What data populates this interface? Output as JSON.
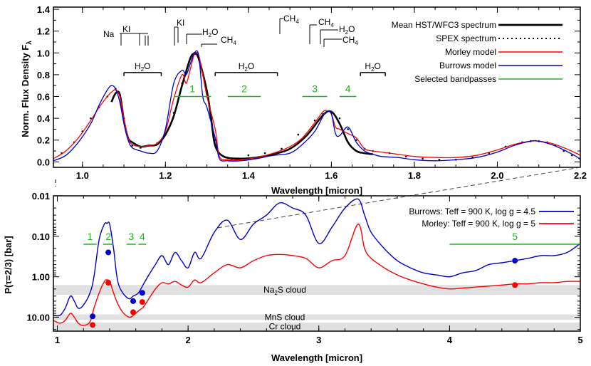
{
  "chart_data": [
    {
      "type": "line",
      "xlabel": "Wavelength [micron]",
      "ylabel": "Norm. Flux Density F",
      "ylabel_sub": "λ",
      "xlim": [
        0.93,
        2.2
      ],
      "ylim": [
        -0.05,
        1.42
      ],
      "x_ticks": [
        1.0,
        1.2,
        1.4,
        1.6,
        1.8,
        2.0,
        2.2
      ],
      "x_tick_labels": [
        "1.0",
        "1.2",
        "1.4",
        "1.6",
        "1.8",
        "2.0",
        "2.2"
      ],
      "y_ticks": [
        0.0,
        0.2,
        0.4,
        0.6,
        0.8,
        1.0,
        1.2,
        1.4
      ],
      "y_tick_labels": [
        "0.0",
        "0.2",
        "0.4",
        "0.6",
        "0.8",
        "1.0",
        "1.2",
        "1.4"
      ],
      "legend": {
        "position": "top-right",
        "entries": [
          {
            "label": "Mean HST/WFC3 spectrum",
            "color": "#000000",
            "style": "thick"
          },
          {
            "label": "SPEX spectrum",
            "color": "#000000",
            "style": "dotted"
          },
          {
            "label": "Morley model",
            "color": "#ff0000",
            "style": "solid"
          },
          {
            "label": "Burrows model",
            "color": "#0000cc",
            "style": "solid"
          },
          {
            "label": "Selected bandpasses",
            "color": "#22b022",
            "style": "solid"
          }
        ]
      },
      "series": [
        {
          "name": "Mean HST/WFC3 spectrum",
          "color": "#000000",
          "x": [
            1.07,
            1.08,
            1.09,
            1.1,
            1.11,
            1.12,
            1.14,
            1.16,
            1.18,
            1.2,
            1.22,
            1.24,
            1.26,
            1.27,
            1.28,
            1.3,
            1.31,
            1.32,
            1.34,
            1.38,
            1.42,
            1.46,
            1.5,
            1.54,
            1.58,
            1.6,
            1.62,
            1.64,
            1.66,
            1.68,
            1.7
          ],
          "y": [
            0.55,
            0.63,
            0.62,
            0.38,
            0.22,
            0.18,
            0.14,
            0.15,
            0.16,
            0.25,
            0.42,
            0.7,
            0.95,
            0.99,
            0.95,
            0.65,
            0.4,
            0.15,
            0.05,
            0.03,
            0.04,
            0.07,
            0.12,
            0.24,
            0.43,
            0.46,
            0.35,
            0.18,
            0.1,
            0.08,
            0.07
          ]
        },
        {
          "name": "SPEX spectrum",
          "color": "#000000",
          "x": [
            0.95,
            0.98,
            1.0,
            1.02,
            1.04,
            1.06,
            1.08,
            1.09,
            1.1,
            1.11,
            1.12,
            1.14,
            1.16,
            1.18,
            1.2,
            1.22,
            1.24,
            1.26,
            1.27,
            1.28,
            1.3,
            1.32,
            1.34,
            1.36,
            1.4,
            1.44,
            1.48,
            1.52,
            1.56,
            1.58,
            1.6,
            1.62,
            1.64,
            1.66,
            1.68,
            1.7,
            1.74,
            1.78,
            1.82,
            1.86,
            1.9,
            1.94,
            1.98,
            2.02,
            2.06,
            2.08,
            2.1,
            2.12,
            2.14,
            2.16,
            2.18,
            2.2
          ],
          "y": [
            0.08,
            0.18,
            0.28,
            0.4,
            0.5,
            0.6,
            0.67,
            0.62,
            0.4,
            0.22,
            0.15,
            0.13,
            0.15,
            0.17,
            0.25,
            0.45,
            0.72,
            0.95,
            1.0,
            0.96,
            0.6,
            0.2,
            0.05,
            0.03,
            0.06,
            0.08,
            0.12,
            0.25,
            0.38,
            0.44,
            0.45,
            0.4,
            0.3,
            0.2,
            0.12,
            0.1,
            0.08,
            0.05,
            0.03,
            0.02,
            0.02,
            0.04,
            0.08,
            0.14,
            0.18,
            0.19,
            0.19,
            0.18,
            0.15,
            0.1,
            0.06,
            0.04
          ]
        },
        {
          "name": "Morley model",
          "color": "#ff0000",
          "x": [
            0.93,
            0.96,
            0.99,
            1.02,
            1.04,
            1.06,
            1.07,
            1.08,
            1.09,
            1.1,
            1.11,
            1.12,
            1.14,
            1.16,
            1.18,
            1.2,
            1.22,
            1.24,
            1.25,
            1.26,
            1.27,
            1.28,
            1.29,
            1.3,
            1.32,
            1.33,
            1.35,
            1.38,
            1.42,
            1.46,
            1.5,
            1.53,
            1.56,
            1.58,
            1.59,
            1.6,
            1.61,
            1.62,
            1.64,
            1.66,
            1.68,
            1.7,
            1.72,
            1.76,
            1.8,
            1.85,
            1.9,
            1.95,
            2.0,
            2.04,
            2.08,
            2.1,
            2.13,
            2.16,
            2.19,
            2.2
          ],
          "y": [
            0.03,
            0.1,
            0.22,
            0.38,
            0.5,
            0.6,
            0.64,
            0.66,
            0.6,
            0.4,
            0.22,
            0.16,
            0.14,
            0.15,
            0.17,
            0.28,
            0.58,
            0.8,
            0.72,
            0.85,
            0.99,
            0.98,
            0.8,
            0.6,
            0.3,
            0.05,
            0.02,
            0.02,
            0.04,
            0.08,
            0.14,
            0.22,
            0.36,
            0.46,
            0.47,
            0.44,
            0.32,
            0.3,
            0.26,
            0.22,
            0.12,
            0.1,
            0.09,
            0.07,
            0.05,
            0.04,
            0.04,
            0.06,
            0.11,
            0.16,
            0.19,
            0.19,
            0.17,
            0.13,
            0.08,
            0.06
          ]
        },
        {
          "name": "Burrows model",
          "color": "#0000cc",
          "x": [
            0.93,
            0.96,
            0.99,
            1.02,
            1.04,
            1.06,
            1.07,
            1.08,
            1.09,
            1.1,
            1.11,
            1.12,
            1.14,
            1.16,
            1.18,
            1.2,
            1.22,
            1.24,
            1.25,
            1.26,
            1.27,
            1.28,
            1.29,
            1.3,
            1.32,
            1.33,
            1.35,
            1.38,
            1.42,
            1.46,
            1.5,
            1.53,
            1.56,
            1.58,
            1.59,
            1.6,
            1.61,
            1.62,
            1.64,
            1.66,
            1.68,
            1.7,
            1.72,
            1.76,
            1.8,
            1.85,
            1.9,
            1.95,
            2.0,
            2.04,
            2.08,
            2.1,
            2.13,
            2.16,
            2.19,
            2.2
          ],
          "y": [
            0.01,
            0.06,
            0.18,
            0.35,
            0.52,
            0.66,
            0.7,
            0.67,
            0.55,
            0.35,
            0.2,
            0.13,
            0.1,
            0.08,
            0.1,
            0.3,
            0.72,
            0.84,
            0.8,
            0.9,
            1.0,
            0.98,
            0.6,
            0.5,
            0.22,
            0.03,
            0.01,
            0.01,
            0.03,
            0.06,
            0.08,
            0.16,
            0.28,
            0.42,
            0.46,
            0.44,
            0.26,
            0.24,
            0.32,
            0.18,
            0.1,
            0.07,
            0.05,
            0.04,
            0.02,
            0.01,
            0.02,
            0.04,
            0.09,
            0.15,
            0.19,
            0.19,
            0.16,
            0.11,
            0.05,
            0.02
          ]
        }
      ],
      "bandpasses": [
        {
          "label": "1",
          "x0": 1.22,
          "x1": 1.31,
          "y": 0.6
        },
        {
          "label": "2",
          "x0": 1.35,
          "x1": 1.43,
          "y": 0.6
        },
        {
          "label": "3",
          "x0": 1.53,
          "x1": 1.59,
          "y": 0.6
        },
        {
          "label": "4",
          "x0": 1.62,
          "x1": 1.66,
          "y": 0.6
        }
      ],
      "h2o_bands": [
        {
          "label": "H2O",
          "x0": 1.1,
          "x1": 1.19,
          "y": 0.82
        },
        {
          "label": "H2O",
          "x0": 1.32,
          "x1": 1.47,
          "y": 0.82
        },
        {
          "label": "H2O",
          "x0": 1.67,
          "x1": 1.73,
          "y": 0.82
        }
      ],
      "molecule_labels": [
        "Na",
        "KI",
        "KI",
        "H2O",
        "CH4",
        "CH4",
        "CH4",
        "H2O",
        "CH4"
      ]
    },
    {
      "type": "line",
      "xlabel": "Wavelength [micron]",
      "ylabel": "P(τ=2/3) [bar]",
      "xlim": [
        0.97,
        5.0
      ],
      "y_scale": "log",
      "y_inverted": true,
      "ylim": [
        0.01,
        22
      ],
      "x_ticks": [
        1,
        2,
        3,
        4,
        5
      ],
      "x_tick_labels": [
        "1",
        "2",
        "3",
        "4",
        "5"
      ],
      "y_ticks": [
        0.01,
        0.1,
        1.0,
        10.0
      ],
      "y_tick_labels": [
        "0.01",
        "0.10",
        "1.00",
        "10.00"
      ],
      "legend": {
        "position": "top-right",
        "entries": [
          {
            "label": "Burrows: Teff = 900 K, log g = 4.5",
            "color": "#0000cc"
          },
          {
            "label": "Morley: Teff = 900 K, log g = 5",
            "color": "#ff0000"
          }
        ]
      },
      "clouds": [
        {
          "label": "Na2S cloud",
          "p_top": 1.6,
          "p_bottom": 2.8
        },
        {
          "label": "MnS cloud",
          "p_top": 8.5,
          "p_bottom": 11.5
        },
        {
          "label": "Cr cloud",
          "p_top": 13.5,
          "p_bottom": 21
        }
      ],
      "bandpasses": [
        {
          "label": "1",
          "x0": 1.2,
          "x1": 1.3
        },
        {
          "label": "2",
          "x0": 1.35,
          "x1": 1.43
        },
        {
          "label": "3",
          "x0": 1.53,
          "x1": 1.6
        },
        {
          "label": "4",
          "x0": 1.62,
          "x1": 1.68
        },
        {
          "label": "5",
          "x0": 4.0,
          "x1": 5.0
        }
      ],
      "series": [
        {
          "name": "Burrows: Teff = 900 K, log g = 4.5",
          "color": "#0000cc",
          "x": [
            0.97,
            1.02,
            1.06,
            1.1,
            1.13,
            1.16,
            1.2,
            1.25,
            1.28,
            1.32,
            1.36,
            1.38,
            1.4,
            1.43,
            1.46,
            1.5,
            1.55,
            1.58,
            1.62,
            1.66,
            1.7,
            1.75,
            1.8,
            1.85,
            1.9,
            1.95,
            2.0,
            2.05,
            2.1,
            2.2,
            2.3,
            2.4,
            2.5,
            2.6,
            2.7,
            2.8,
            2.9,
            3.0,
            3.1,
            3.2,
            3.3,
            3.35,
            3.4,
            3.5,
            3.6,
            3.7,
            3.8,
            3.9,
            4.0,
            4.1,
            4.2,
            4.3,
            4.4,
            4.5,
            4.6,
            4.7,
            4.8,
            4.9,
            5.0
          ],
          "y": [
            9,
            9,
            6,
            3,
            4,
            6,
            5,
            2.5,
            1.0,
            0.12,
            0.05,
            0.048,
            0.05,
            0.2,
            1.2,
            2.5,
            3.5,
            3.0,
            2.5,
            1.5,
            0.9,
            0.5,
            0.3,
            0.5,
            0.25,
            0.4,
            0.6,
            0.25,
            0.35,
            0.08,
            0.04,
            0.12,
            0.05,
            0.03,
            0.015,
            0.02,
            0.03,
            0.15,
            0.06,
            0.02,
            0.012,
            0.03,
            0.08,
            0.2,
            0.4,
            0.6,
            0.8,
            0.9,
            1.0,
            0.8,
            0.7,
            0.5,
            0.45,
            0.4,
            0.35,
            0.3,
            0.3,
            0.25,
            0.15
          ]
        },
        {
          "name": "Morley: Teff = 900 K, log g = 5",
          "color": "#ff0000",
          "x": [
            0.97,
            1.02,
            1.06,
            1.1,
            1.13,
            1.16,
            1.2,
            1.25,
            1.28,
            1.32,
            1.36,
            1.38,
            1.4,
            1.43,
            1.46,
            1.5,
            1.55,
            1.58,
            1.62,
            1.66,
            1.7,
            1.75,
            1.8,
            1.85,
            1.9,
            1.95,
            2.0,
            2.05,
            2.1,
            2.2,
            2.3,
            2.4,
            2.5,
            2.6,
            2.7,
            2.8,
            2.9,
            3.0,
            3.1,
            3.2,
            3.3,
            3.35,
            3.4,
            3.5,
            3.6,
            3.7,
            3.8,
            3.9,
            4.0,
            4.1,
            4.2,
            4.3,
            4.4,
            4.5,
            4.6,
            4.7,
            4.8,
            4.9,
            5.0
          ],
          "y": [
            12,
            14,
            12,
            8,
            10,
            14,
            16,
            13,
            6,
            2.5,
            1.3,
            1.2,
            1.3,
            2.5,
            4.5,
            7.5,
            10,
            9,
            7,
            5.5,
            3.5,
            2.0,
            1.4,
            1.5,
            1.3,
            1.6,
            1.8,
            1.2,
            1.4,
            0.8,
            0.5,
            0.6,
            0.4,
            0.3,
            0.28,
            0.3,
            0.35,
            0.6,
            0.4,
            0.3,
            0.05,
            0.2,
            0.35,
            0.6,
            0.9,
            1.2,
            1.5,
            1.8,
            2.0,
            1.9,
            1.8,
            1.7,
            1.6,
            1.5,
            1.5,
            1.4,
            1.4,
            1.3,
            1.3
          ]
        }
      ],
      "markers_burrows": [
        [
          1.27,
          9.5
        ],
        [
          1.39,
          0.25
        ],
        [
          1.58,
          4.0
        ],
        [
          1.65,
          2.5
        ],
        [
          4.5,
          0.4
        ]
      ],
      "markers_morley": [
        [
          1.27,
          15.5
        ],
        [
          1.39,
          1.4
        ],
        [
          1.58,
          7.5
        ],
        [
          1.65,
          4.2
        ],
        [
          4.5,
          1.6
        ]
      ]
    }
  ],
  "texts": {
    "top_xlabel": "Wavelength [micron]",
    "bottom_xlabel": "Wavelength [micron]",
    "top_ylabel_main": "Norm. Flux Density F",
    "top_ylabel_sub": "λ",
    "bottom_ylabel": "P(τ=2/3) [bar]",
    "na": "Na",
    "ki1": "KI",
    "ki2": "KI",
    "h2o_mol": "H2O",
    "ch4_a": "CH4",
    "ch4_b": "CH4",
    "ch4_c": "CH4",
    "h2o_mol2": "H2O",
    "ch4_d": "CH4",
    "h2o_band1": "H2O",
    "h2o_band2": "H2O",
    "h2o_band3": "H2O",
    "cloud_na2s": "Na2S cloud",
    "cloud_mns": "MnS cloud",
    "cloud_cr": "Cr cloud"
  }
}
